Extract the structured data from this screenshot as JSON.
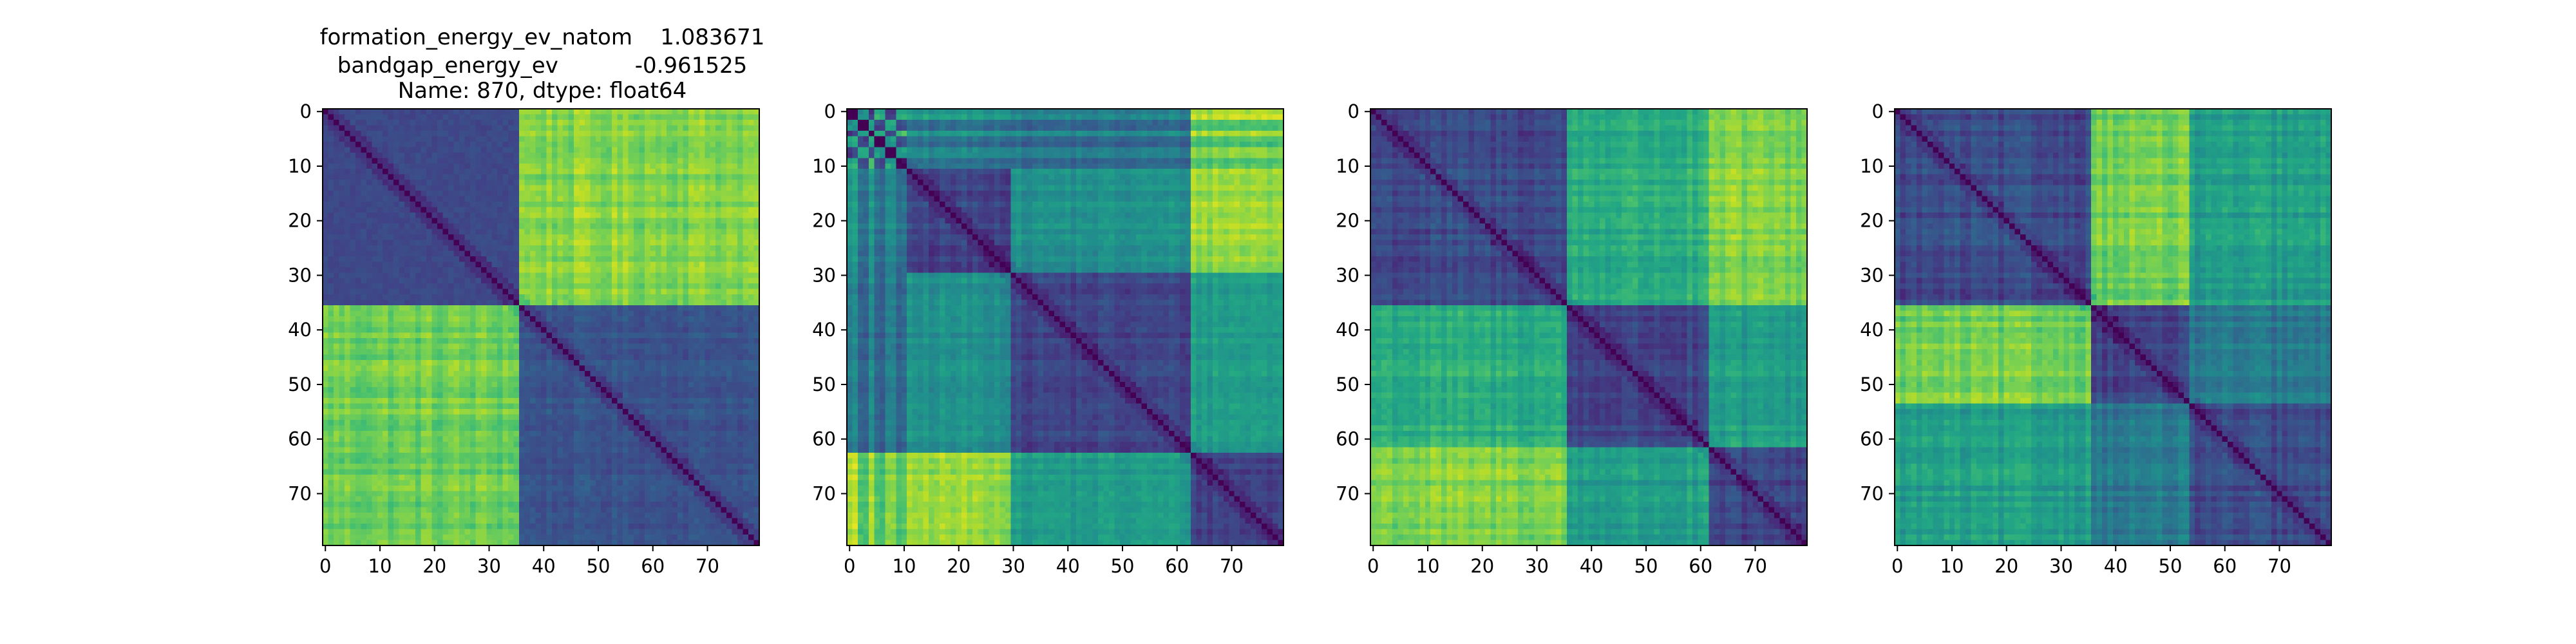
{
  "figure": {
    "title_lines": [
      "formation_energy_ev_natom    1.083671",
      "bandgap_energy_ev           -0.961525",
      "Name: 870, dtype: float64"
    ]
  },
  "chart_data": [
    {
      "type": "heatmap",
      "panel": 1,
      "size": 80,
      "colormap": "viridis",
      "xlim": [
        -0.5,
        79.5
      ],
      "ylim": [
        79.5,
        -0.5
      ],
      "x_ticks": [
        0,
        10,
        20,
        30,
        40,
        50,
        60,
        70
      ],
      "y_ticks": [
        0,
        10,
        20,
        30,
        40,
        50,
        60,
        70
      ],
      "blocks": [
        [
          0,
          36
        ],
        [
          36,
          80
        ]
      ],
      "block_levels": [
        [
          0.22,
          0.82
        ],
        [
          0.78,
          0.26
        ]
      ],
      "block_column_variation": [
        [
          0,
          0.1
        ],
        [
          0.1,
          0.05
        ]
      ],
      "grid": false
    },
    {
      "type": "heatmap",
      "panel": 2,
      "size": 80,
      "colormap": "viridis",
      "xlim": [
        -0.5,
        79.5
      ],
      "ylim": [
        79.5,
        -0.5
      ],
      "x_ticks": [
        0,
        10,
        20,
        30,
        40,
        50,
        60,
        70
      ],
      "y_ticks": [
        0,
        10,
        20,
        30,
        40,
        50,
        60,
        70
      ],
      "blocks": [
        [
          0,
          2
        ],
        [
          2,
          4
        ],
        [
          4,
          5
        ],
        [
          5,
          7
        ],
        [
          7,
          9
        ],
        [
          9,
          11
        ],
        [
          11,
          30
        ],
        [
          30,
          63
        ],
        [
          63,
          80
        ]
      ],
      "block_levels": [
        [
          0.05,
          0.55,
          0.15,
          0.6,
          0.2,
          0.6,
          0.55,
          0.45,
          0.9
        ],
        [
          0.55,
          0.05,
          0.6,
          0.2,
          0.6,
          0.2,
          0.35,
          0.3,
          0.7
        ],
        [
          0.15,
          0.6,
          0.05,
          0.65,
          0.2,
          0.65,
          0.5,
          0.45,
          0.85
        ],
        [
          0.6,
          0.2,
          0.65,
          0.05,
          0.6,
          0.2,
          0.35,
          0.3,
          0.7
        ],
        [
          0.2,
          0.6,
          0.2,
          0.6,
          0.05,
          0.6,
          0.5,
          0.45,
          0.85
        ],
        [
          0.6,
          0.2,
          0.65,
          0.2,
          0.6,
          0.05,
          0.35,
          0.3,
          0.7
        ],
        [
          0.55,
          0.35,
          0.5,
          0.35,
          0.5,
          0.35,
          0.2,
          0.5,
          0.85
        ],
        [
          0.45,
          0.3,
          0.45,
          0.3,
          0.45,
          0.3,
          0.5,
          0.2,
          0.55
        ],
        [
          0.9,
          0.7,
          0.85,
          0.7,
          0.85,
          0.7,
          0.85,
          0.55,
          0.2
        ]
      ],
      "block_column_variation": 0.08,
      "grid": false
    },
    {
      "type": "heatmap",
      "panel": 3,
      "size": 80,
      "colormap": "viridis",
      "xlim": [
        -0.5,
        79.5
      ],
      "ylim": [
        79.5,
        -0.5
      ],
      "x_ticks": [
        0,
        10,
        20,
        30,
        40,
        50,
        60,
        70
      ],
      "y_ticks": [
        0,
        10,
        20,
        30,
        40,
        50,
        60,
        70
      ],
      "blocks": [
        [
          0,
          36
        ],
        [
          36,
          62
        ],
        [
          62,
          80
        ]
      ],
      "block_levels": [
        [
          0.22,
          0.62,
          0.8
        ],
        [
          0.62,
          0.2,
          0.55
        ],
        [
          0.8,
          0.55,
          0.2
        ]
      ],
      "block_column_variation": 0.1,
      "grid": false
    },
    {
      "type": "heatmap",
      "panel": 4,
      "size": 80,
      "colormap": "viridis",
      "xlim": [
        -0.5,
        79.5
      ],
      "ylim": [
        79.5,
        -0.5
      ],
      "x_ticks": [
        0,
        10,
        20,
        30,
        40,
        50,
        60,
        70
      ],
      "y_ticks": [
        0,
        10,
        20,
        30,
        40,
        50,
        60,
        70
      ],
      "blocks": [
        [
          0,
          36
        ],
        [
          36,
          54
        ],
        [
          54,
          80
        ]
      ],
      "block_levels": [
        [
          0.22,
          0.78,
          0.55
        ],
        [
          0.78,
          0.2,
          0.4
        ],
        [
          0.55,
          0.4,
          0.22
        ]
      ],
      "block_column_variation": 0.1,
      "grid": false
    }
  ]
}
